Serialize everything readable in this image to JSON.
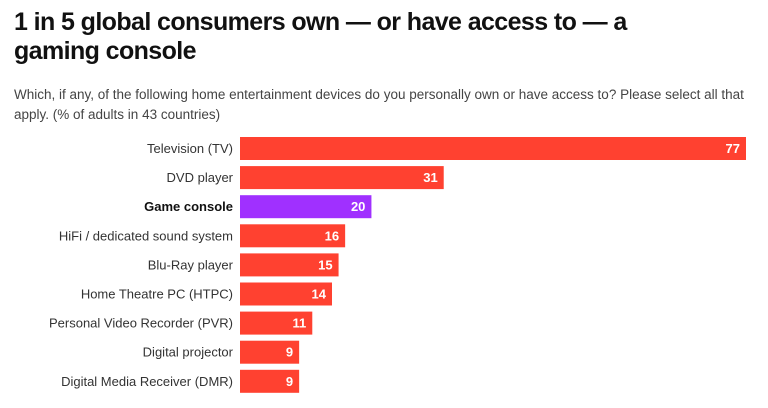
{
  "chart_data": {
    "type": "bar",
    "orientation": "horizontal",
    "title": "1 in 5 global consumers own — or have access to — a gaming console",
    "subtitle": "Which, if any, of the following home entertainment devices do you personally own or have access to? Please select all that apply. (% of adults in 43 countries)",
    "categories": [
      "Television (TV)",
      "DVD player",
      "Game console",
      "HiFi / dedicated sound system",
      "Blu-Ray player",
      "Home Theatre PC (HTPC)",
      "Personal Video Recorder (PVR)",
      "Digital projector",
      "Digital Media Receiver (DMR)"
    ],
    "values": [
      77,
      31,
      20,
      16,
      15,
      14,
      11,
      9,
      9
    ],
    "highlight": "Game console",
    "colors": {
      "default": "#ff4130",
      "highlight": "#a030ff"
    },
    "xlim": [
      0,
      77
    ],
    "grid": false,
    "data_labels": true
  }
}
